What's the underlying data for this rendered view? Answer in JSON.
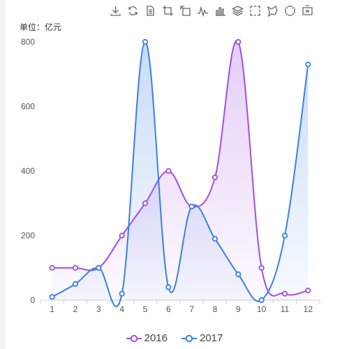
{
  "toolbox": {
    "icons": [
      "download-icon",
      "refresh-icon",
      "data-view-icon",
      "zoom-icon",
      "zoom-reset-icon",
      "line-chart-icon",
      "bar-chart-icon",
      "stack-icon",
      "rect-select-icon",
      "lasso-select-icon",
      "keep-select-icon",
      "clear-select-icon"
    ]
  },
  "colors": {
    "series_2016": "#a04fe0",
    "series_2017": "#3a7fe6",
    "axis": "#cccccc",
    "tick_text": "#555555"
  },
  "chart_data": {
    "type": "line",
    "unit_label": "单位：亿元",
    "categories": [
      "1",
      "2",
      "3",
      "4",
      "5",
      "6",
      "7",
      "8",
      "9",
      "10",
      "11",
      "12"
    ],
    "ylim": [
      0,
      800
    ],
    "yticks": [
      0,
      200,
      400,
      600,
      800
    ],
    "smooth": true,
    "area_fill": true,
    "grid": false,
    "legend_position": "bottom-center",
    "series": [
      {
        "name": "2016",
        "values": [
          100,
          100,
          100,
          200,
          300,
          400,
          290,
          380,
          800,
          100,
          20,
          30
        ]
      },
      {
        "name": "2017",
        "values": [
          10,
          50,
          100,
          20,
          800,
          40,
          290,
          190,
          80,
          0,
          200,
          730
        ]
      }
    ]
  }
}
